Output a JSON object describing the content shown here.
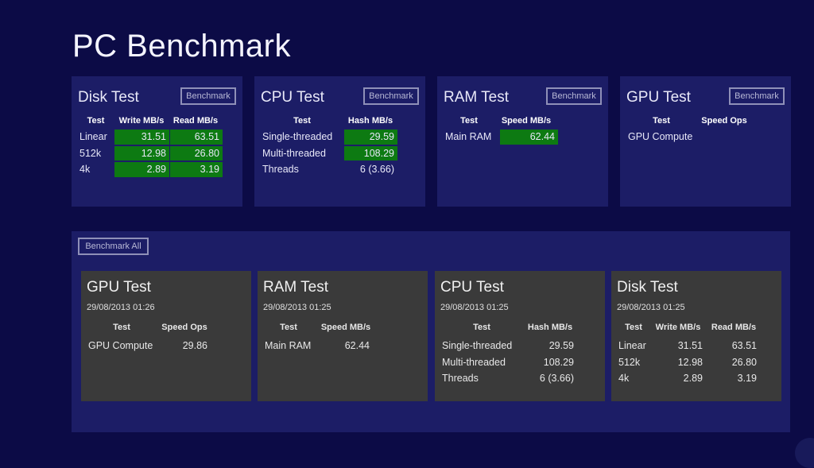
{
  "app": {
    "title": "PC Benchmark"
  },
  "top_tiles": {
    "disk": {
      "title": "Disk Test",
      "button": "Benchmark",
      "headers": [
        "Test",
        "Write MB/s",
        "Read MB/s"
      ],
      "rows": [
        {
          "test": "Linear",
          "write": "31.51",
          "read": "63.51"
        },
        {
          "test": "512k",
          "write": "12.98",
          "read": "26.80"
        },
        {
          "test": "4k",
          "write": "2.89",
          "read": "3.19"
        }
      ]
    },
    "cpu": {
      "title": "CPU Test",
      "button": "Benchmark",
      "headers": [
        "Test",
        "Hash MB/s"
      ],
      "rows": [
        {
          "test": "Single-threaded",
          "value": "29.59"
        },
        {
          "test": "Multi-threaded",
          "value": "108.29"
        },
        {
          "test": "Threads",
          "value": "6 (3.66)"
        }
      ]
    },
    "ram": {
      "title": "RAM Test",
      "button": "Benchmark",
      "headers": [
        "Test",
        "Speed MB/s"
      ],
      "rows": [
        {
          "test": "Main RAM",
          "value": "62.44"
        }
      ]
    },
    "gpu": {
      "title": "GPU Test",
      "button": "Benchmark",
      "headers": [
        "Test",
        "Speed Ops"
      ],
      "rows": [
        {
          "test": "GPU Compute",
          "value": ""
        }
      ]
    }
  },
  "history": {
    "button": "Benchmark All",
    "gpu": {
      "title": "GPU Test",
      "date": "29/08/2013 01:26",
      "headers": [
        "Test",
        "Speed Ops"
      ],
      "rows": [
        {
          "test": "GPU Compute",
          "value": "29.86"
        }
      ]
    },
    "ram": {
      "title": "RAM Test",
      "date": "29/08/2013 01:25",
      "headers": [
        "Test",
        "Speed MB/s"
      ],
      "rows": [
        {
          "test": "Main RAM",
          "value": "62.44"
        }
      ]
    },
    "cpu": {
      "title": "CPU Test",
      "date": "29/08/2013 01:25",
      "headers": [
        "Test",
        "Hash MB/s"
      ],
      "rows": [
        {
          "test": "Single-threaded",
          "value": "29.59"
        },
        {
          "test": "Multi-threaded",
          "value": "108.29"
        },
        {
          "test": "Threads",
          "value": "6 (3.66)"
        }
      ]
    },
    "disk": {
      "title": "Disk Test",
      "date": "29/08/2013 01:25",
      "headers": [
        "Test",
        "Write MB/s",
        "Read MB/s"
      ],
      "rows": [
        {
          "test": "Linear",
          "write": "31.51",
          "read": "63.51"
        },
        {
          "test": "512k",
          "write": "12.98",
          "read": "26.80"
        },
        {
          "test": "4k",
          "write": "2.89",
          "read": "3.19"
        }
      ]
    }
  },
  "colors": {
    "background": "#0c0b46",
    "tile": "#1c1d66",
    "result_green": "#0d7a12",
    "card": "#3a3a3a"
  }
}
